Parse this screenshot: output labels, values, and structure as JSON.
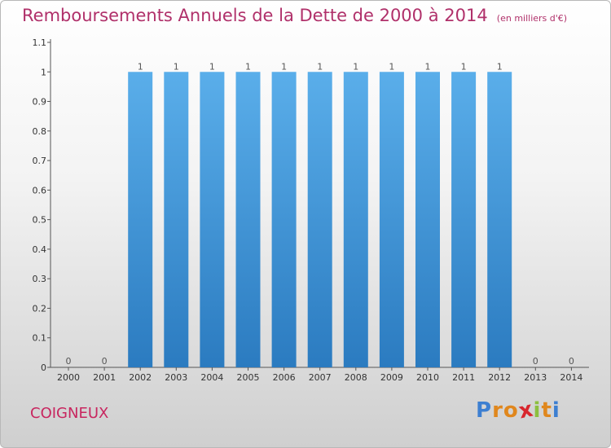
{
  "chart_data": {
    "type": "bar",
    "title": "Remboursements Annuels de la Dette de 2000 à 2014",
    "subtitle": "(en milliers d'€)",
    "categories": [
      "2000",
      "2001",
      "2002",
      "2003",
      "2004",
      "2005",
      "2006",
      "2007",
      "2008",
      "2009",
      "2010",
      "2011",
      "2012",
      "2013",
      "2014"
    ],
    "values": [
      0,
      0,
      1,
      1,
      1,
      1,
      1,
      1,
      1,
      1,
      1,
      1,
      1,
      0,
      0
    ],
    "data_labels": [
      "0",
      "0",
      "1",
      "1",
      "1",
      "1",
      "1",
      "1",
      "1",
      "1",
      "1",
      "1",
      "1",
      "0",
      "0"
    ],
    "ylim": [
      0,
      1.1
    ],
    "yticks": [
      "0",
      "0.1",
      "0.2",
      "0.3",
      "0.4",
      "0.5",
      "0.6",
      "0.7",
      "0.8",
      "0.9",
      "1",
      "1.1"
    ],
    "grid": false,
    "bar_color_top": "#5aaeea",
    "bar_color_bottom": "#2b7bc0"
  },
  "footer": {
    "commune": "COIGNEUX",
    "logo_letters": [
      "P",
      "r",
      "o",
      "x",
      "i",
      "t",
      "i"
    ],
    "logo_colors": [
      "#3d7fd1",
      "#e0871d",
      "#e0871d",
      "#d8262d",
      "#8cbf3f",
      "#e0871d",
      "#3d7fd1"
    ]
  }
}
